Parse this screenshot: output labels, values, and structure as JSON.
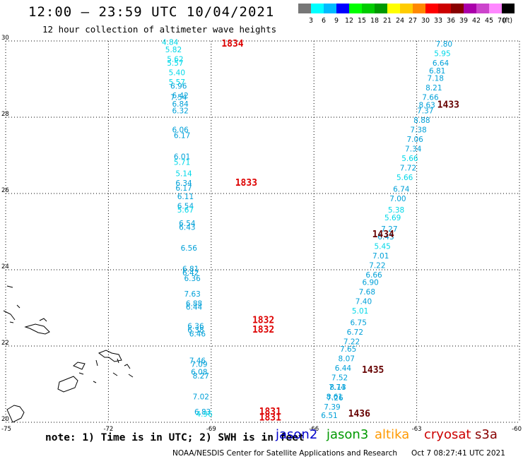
{
  "header": {
    "title": "12:00 – 23:59 UTC 10/04/2021",
    "subtitle": "12 hour collection of altimeter wave heights"
  },
  "color_scale": {
    "colors": [
      "#777777",
      "#00ffff",
      "#00bbff",
      "#0000ff",
      "#00ff00",
      "#00cc00",
      "#009900",
      "#ffff00",
      "#ffcc00",
      "#ff8800",
      "#ff0000",
      "#cc0000",
      "#880000",
      "#aa00aa",
      "#cc44cc",
      "#ff88ff",
      "#000000"
    ],
    "labels": [
      "3",
      "6",
      "9",
      "12",
      "15",
      "18",
      "21",
      "24",
      "27",
      "30",
      "33",
      "36",
      "39",
      "42",
      "45",
      "70"
    ],
    "unit": "(ft)"
  },
  "axes": {
    "lon_labels": [
      "-75",
      "-72",
      "-69",
      "-66",
      "-63",
      "-60"
    ],
    "lat_labels": [
      "30",
      "28",
      "26",
      "24",
      "22",
      "20"
    ]
  },
  "track_left": {
    "lon": [
      -70.2,
      -70.1,
      -70.05,
      -70.05,
      -70.0,
      -70.0,
      -69.95,
      -69.9,
      -69.95,
      -69.9,
      -69.9,
      -69.9,
      -69.85,
      -69.85,
      -69.85,
      -69.8,
      -69.8,
      -69.8,
      -69.75,
      -69.75,
      -69.75,
      -69.7,
      -69.7,
      -69.65,
      -69.6,
      -69.6,
      -69.55,
      -69.55,
      -69.5,
      -69.5,
      -69.45,
      -69.45,
      -69.4,
      -69.4,
      -69.35,
      -69.35,
      -69.3,
      -69.3,
      -69.25,
      -69.2
    ],
    "lat": [
      29.9,
      29.7,
      29.45,
      29.35,
      29.1,
      28.85,
      28.75,
      28.5,
      28.45,
      28.28,
      28.1,
      27.6,
      27.45,
      26.9,
      26.75,
      26.45,
      26.2,
      26.07,
      25.85,
      25.6,
      25.5,
      25.15,
      25.05,
      24.5,
      23.95,
      23.85,
      23.7,
      23.3,
      23.05,
      22.95,
      22.45,
      22.35,
      22.25,
      21.55,
      21.45,
      21.25,
      21.15,
      20.6,
      20.2,
      20.15
    ],
    "labels": [
      "4.84",
      "5.82",
      "5.62",
      "5.57",
      "5.40",
      "5.57",
      "6.96",
      "6.42",
      "7.54",
      "6.84",
      "6.32",
      "6.06",
      "6.17",
      "6.01",
      "5.71",
      "5.14",
      "6.34",
      "6.17",
      "6.11",
      "6.54",
      "5.67",
      "6.54",
      "6.43",
      "6.56",
      "6.81",
      "6.42",
      "6.36",
      "7.63",
      "6.88",
      "6.44",
      "6.36",
      "6.38",
      "6.46",
      "7.46",
      "7.09",
      "6.08",
      "8.27",
      "7.02",
      "6.83",
      "4.96"
    ],
    "pass_labels": [
      {
        "text": "1834",
        "lon": -68.7,
        "lat": 29.85
      },
      {
        "text": "1833",
        "lon": -68.3,
        "lat": 26.2
      },
      {
        "text": "1832",
        "lon": -67.8,
        "lat": 22.6
      },
      {
        "text": "1832",
        "lon": -67.8,
        "lat": 22.35
      },
      {
        "text": "1831",
        "lon": -67.6,
        "lat": 20.2
      },
      {
        "text": "1831",
        "lon": -67.6,
        "lat": 20.05
      }
    ]
  },
  "track_right": {
    "lon": [
      -62.2,
      -62.25,
      -62.3,
      -62.4,
      -62.45,
      -62.5,
      -62.6,
      -62.7,
      -62.75,
      -62.85,
      -62.95,
      -63.05,
      -63.1,
      -63.2,
      -63.25,
      -63.35,
      -63.45,
      -63.55,
      -63.6,
      -63.7,
      -63.8,
      -63.9,
      -64.0,
      -64.05,
      -64.15,
      -64.25,
      -64.35,
      -64.45,
      -64.55,
      -64.65,
      -64.7,
      -64.8,
      -64.9,
      -65.0,
      -65.05,
      -65.15,
      -65.25,
      -65.3,
      -65.4
    ],
    "lat": [
      29.85,
      29.6,
      29.35,
      29.15,
      28.95,
      28.7,
      28.45,
      28.25,
      28.1,
      27.85,
      27.6,
      27.35,
      27.1,
      26.85,
      26.6,
      26.35,
      26.05,
      25.8,
      25.5,
      25.3,
      25.0,
      24.8,
      24.55,
      24.3,
      24.05,
      23.8,
      23.6,
      23.35,
      23.1,
      22.85,
      22.55,
      22.3,
      22.05,
      21.85,
      21.6,
      21.35,
      21.1,
      20.85,
      20.6
    ],
    "labels": [
      "7.80",
      "5.95",
      "6.64",
      "6.81",
      "7.18",
      "8.21",
      "7.66",
      "8.63",
      "7.37",
      "8.88",
      "7.38",
      "7.06",
      "7.34",
      "5.66",
      "7.72",
      "5.66",
      "6.74",
      "7.00",
      "5.38",
      "5.69",
      "7.27",
      "6.43",
      "5.45",
      "7.01",
      "7.22",
      "6.66",
      "6.90",
      "7.68",
      "7.40",
      "5.01",
      "6.75",
      "6.72",
      "7.22",
      "7.65",
      "8.07",
      "6.44",
      "7.52",
      "8.13",
      "8.61"
    ],
    "labels_extra": [
      "7.74",
      "7.26",
      "7.39",
      "6.51"
    ],
    "pass_labels": [
      {
        "text": "1433",
        "lon": -62.4,
        "lat": 28.25
      },
      {
        "text": "1434",
        "lon": -64.3,
        "lat": 24.85
      },
      {
        "text": "1435",
        "lon": -64.6,
        "lat": 21.3
      },
      {
        "text": "1436",
        "lon": -65.0,
        "lat": 20.15
      }
    ]
  },
  "footer": {
    "note": "note: 1) Time is in UTC; 2) SWH is in feet",
    "satellites": [
      {
        "name": "jason2",
        "color": "#0000cc"
      },
      {
        "name": "jason3",
        "color": "#009900"
      },
      {
        "name": "altika",
        "color": "#ff9900"
      },
      {
        "name": "cryosat",
        "color": "#cc0000"
      },
      {
        "name": "s3a",
        "color": "#880000"
      }
    ],
    "credit": "NOAA/NESDIS Center for Satellite Applications and Research",
    "timestamp": "Oct  7 08:27:41 UTC 2021"
  }
}
